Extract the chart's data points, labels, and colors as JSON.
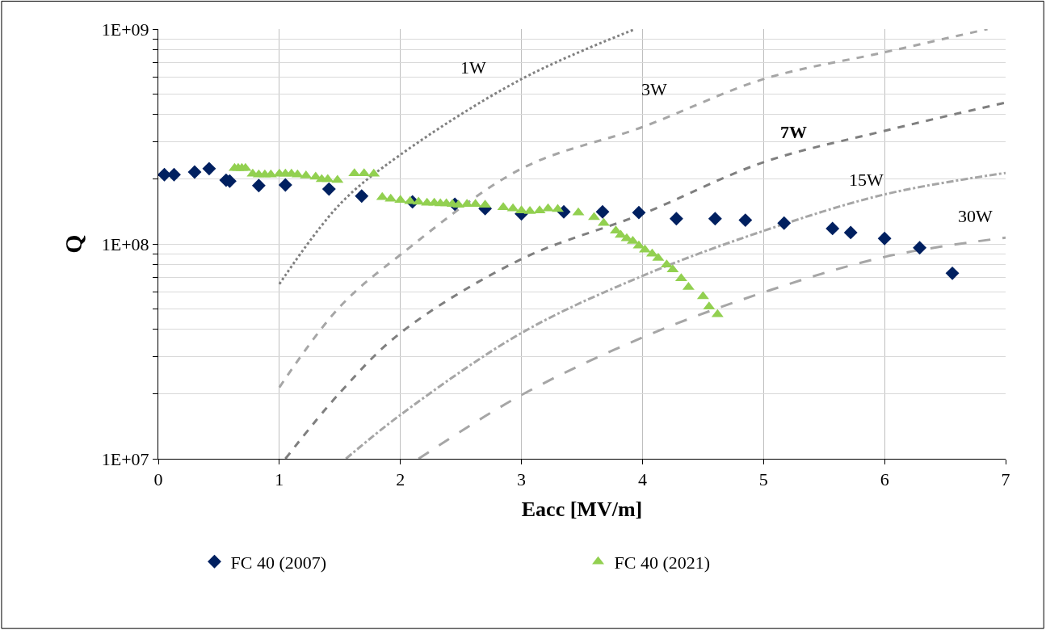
{
  "chart_data": {
    "type": "scatter",
    "xlabel": "Eacc [MV/m]",
    "ylabel": "Q",
    "log": "y",
    "xlim": [
      0,
      7
    ],
    "xticks": [
      0,
      1,
      2,
      3,
      4,
      5,
      6,
      7
    ],
    "ylim": [
      10000000,
      1000000000
    ],
    "yticks": [
      {
        "value": 10000000,
        "label": "1E+07"
      },
      {
        "value": 20000000,
        "label": null
      },
      {
        "value": 30000000,
        "label": null
      },
      {
        "value": 40000000,
        "label": null
      },
      {
        "value": 50000000,
        "label": null
      },
      {
        "value": 60000000,
        "label": null
      },
      {
        "value": 70000000,
        "label": null
      },
      {
        "value": 80000000,
        "label": null
      },
      {
        "value": 90000000,
        "label": null
      },
      {
        "value": 100000000,
        "label": "1E+08"
      },
      {
        "value": 200000000,
        "label": null
      },
      {
        "value": 300000000,
        "label": null
      },
      {
        "value": 400000000,
        "label": null
      },
      {
        "value": 500000000,
        "label": null
      },
      {
        "value": 600000000,
        "label": null
      },
      {
        "value": 700000000,
        "label": null
      },
      {
        "value": 800000000,
        "label": null
      },
      {
        "value": 900000000,
        "label": null
      },
      {
        "value": 1000000000,
        "label": "1E+09"
      }
    ],
    "grid": true,
    "legend": "bottom",
    "series": [
      {
        "type": "line",
        "name": "1W",
        "color": "#808080",
        "line_style": "dotted",
        "x": [
          1,
          1.5,
          2,
          3,
          3.94
        ],
        "values": [
          65000000,
          153000000,
          260000000,
          585000000,
          1000000000
        ]
      },
      {
        "type": "line",
        "name": "3W",
        "color": "#a6a6a6",
        "line_style": "dashed",
        "x": [
          1,
          1.5,
          2,
          3,
          4,
          5,
          6,
          6.85
        ],
        "values": [
          21500000,
          51000000,
          89000000,
          224000000,
          350000000,
          585000000,
          780000000,
          1000000000
        ]
      },
      {
        "type": "line",
        "name": "7W",
        "color": "#7f7f7f",
        "line_style": "dashed",
        "x": [
          1.05,
          1.5,
          2,
          3,
          4,
          5,
          6,
          7
        ],
        "values": [
          10000000,
          20300000,
          38500000,
          85000000,
          138000000,
          240000000,
          336000000,
          455000000
        ]
      },
      {
        "type": "line",
        "name": "15W",
        "color": "#a6a6a6",
        "line_style": "dashdot",
        "x": [
          1.55,
          2,
          3,
          4,
          5,
          6,
          7
        ],
        "values": [
          10000000,
          16000000,
          38500000,
          71000000,
          115000000,
          170000000,
          214000000
        ]
      },
      {
        "type": "line",
        "name": "30W",
        "color": "#a6a6a6",
        "line_style": "longdash",
        "x": [
          2.15,
          3,
          4,
          5,
          6,
          7
        ],
        "values": [
          10000000,
          19800000,
          36700000,
          59500000,
          87000000,
          107000000
        ]
      },
      {
        "name": "FC 40 (2007)",
        "color": "#002060",
        "marker": "diamond",
        "x": [
          0.05,
          0.13,
          0.3,
          0.42,
          0.56,
          0.59,
          0.83,
          1.05,
          1.41,
          1.68,
          2.1,
          2.45,
          2.7,
          3.0,
          3.35,
          3.67,
          3.97,
          4.28,
          4.6,
          4.85,
          5.17,
          5.57,
          5.72,
          6.0,
          6.29,
          6.56
        ],
        "values": [
          210000000,
          210000000,
          216000000,
          224000000,
          198000000,
          196000000,
          187000000,
          188000000,
          180000000,
          167000000,
          157000000,
          153000000,
          146000000,
          138000000,
          141000000,
          141000000,
          140000000,
          131000000,
          131000000,
          129000000,
          125000000,
          118000000,
          113000000,
          106000000,
          96000000,
          73000000
        ]
      },
      {
        "name": "FC 40 (2021)",
        "color": "#92d050",
        "marker": "triangle",
        "x": [
          0.63,
          0.66,
          0.69,
          0.72,
          0.78,
          0.83,
          0.88,
          0.93,
          1.0,
          1.05,
          1.1,
          1.15,
          1.22,
          1.3,
          1.35,
          1.4,
          1.48,
          1.62,
          1.7,
          1.78,
          1.85,
          1.92,
          2.0,
          2.08,
          2.15,
          2.22,
          2.28,
          2.33,
          2.38,
          2.43,
          2.48,
          2.55,
          2.62,
          2.7,
          2.85,
          2.93,
          3.0,
          3.07,
          3.15,
          3.22,
          3.3,
          3.47,
          3.6,
          3.68,
          3.78,
          3.82,
          3.87,
          3.92,
          3.97,
          4.02,
          4.08,
          4.13,
          4.2,
          4.25,
          4.32,
          4.38,
          4.5,
          4.55,
          4.62
        ],
        "values": [
          225000000,
          225000000,
          225000000,
          225000000,
          212000000,
          210000000,
          210000000,
          210000000,
          212000000,
          212000000,
          212000000,
          210000000,
          208000000,
          205000000,
          200000000,
          200000000,
          198000000,
          213000000,
          213000000,
          212000000,
          165000000,
          162000000,
          160000000,
          158000000,
          157000000,
          155000000,
          155000000,
          154000000,
          154000000,
          153000000,
          152000000,
          153000000,
          153000000,
          152000000,
          148000000,
          146000000,
          143000000,
          142000000,
          143000000,
          146000000,
          145000000,
          140000000,
          133000000,
          125000000,
          115000000,
          110000000,
          106000000,
          103000000,
          98000000,
          94000000,
          90000000,
          86000000,
          80000000,
          76000000,
          69000000,
          63000000,
          57000000,
          51000000,
          47000000
        ]
      }
    ]
  }
}
